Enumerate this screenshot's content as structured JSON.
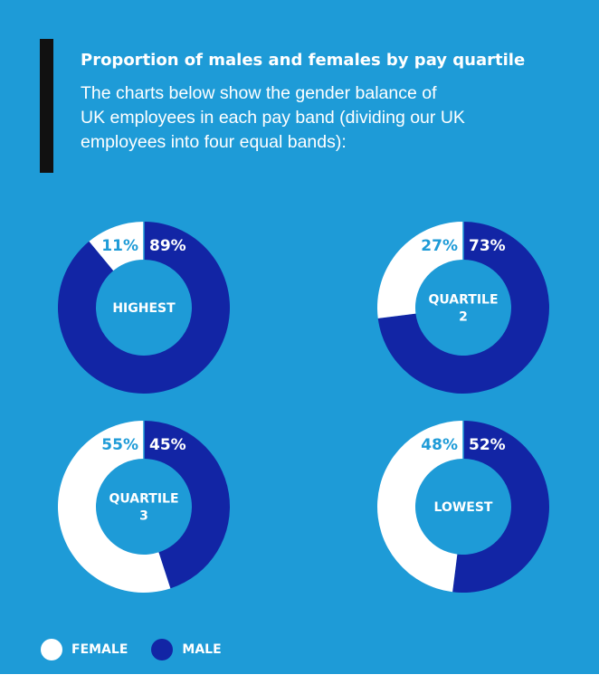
{
  "header": {
    "title": "Proportion of males and females by pay quartile",
    "description_lines": [
      "The charts below show the gender balance of",
      "UK employees in each pay band (dividing our UK",
      "employees into four equal bands):"
    ]
  },
  "colors": {
    "background": "#1e9bd7",
    "female": "#ffffff",
    "male": "#1225a5",
    "accent": "#111111"
  },
  "legend": {
    "female_label": "FEMALE",
    "male_label": "MALE"
  },
  "chart_data": [
    {
      "type": "pie",
      "center_label": [
        "HIGHEST"
      ],
      "labels": [
        "FEMALE",
        "MALE"
      ],
      "values": [
        11,
        89
      ],
      "value_labels": [
        "11%",
        "89%"
      ]
    },
    {
      "type": "pie",
      "center_label": [
        "QUARTILE",
        "2"
      ],
      "labels": [
        "FEMALE",
        "MALE"
      ],
      "values": [
        27,
        73
      ],
      "value_labels": [
        "27%",
        "73%"
      ]
    },
    {
      "type": "pie",
      "center_label": [
        "QUARTILE",
        "3"
      ],
      "labels": [
        "FEMALE",
        "MALE"
      ],
      "values": [
        55,
        45
      ],
      "value_labels": [
        "55%",
        "45%"
      ]
    },
    {
      "type": "pie",
      "center_label": [
        "LOWEST"
      ],
      "labels": [
        "FEMALE",
        "MALE"
      ],
      "values": [
        48,
        52
      ],
      "value_labels": [
        "48%",
        "52%"
      ]
    }
  ]
}
